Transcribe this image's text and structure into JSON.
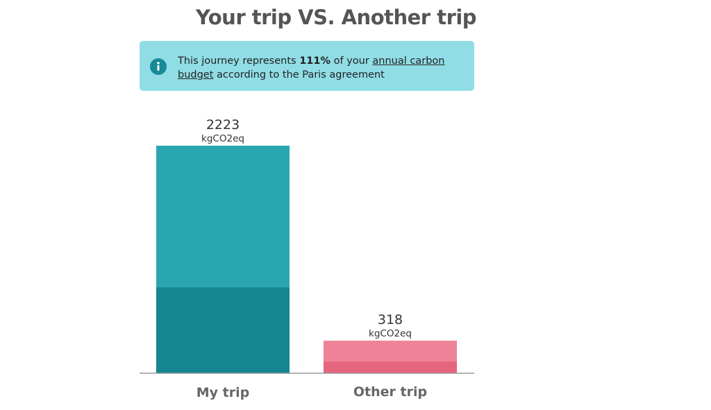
{
  "chart_data": {
    "type": "stacked-bar",
    "title": "Your trip VS. Another trip",
    "categories": [
      "My trip",
      "Other trip"
    ],
    "series": [
      {
        "colors": [
          "#158790",
          "#e5657c"
        ],
        "values": [
          840,
          115
        ]
      },
      {
        "colors": [
          "#2aa6b3",
          "#ee8296"
        ],
        "values": [
          1383,
          203
        ]
      }
    ],
    "totals": [
      2223,
      318
    ],
    "unit": "kgCO2eq",
    "ylim": [
      0,
      2223
    ]
  },
  "notice": {
    "before": "This journey represents ",
    "highlight": "111%",
    "middle": " of your ",
    "link": "annual carbon budget",
    "after": " according to the Paris agreement"
  }
}
